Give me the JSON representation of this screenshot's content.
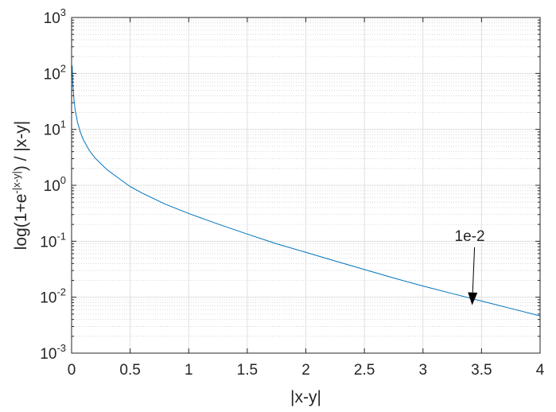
{
  "chart_data": {
    "type": "line",
    "title": "",
    "xlabel": "|x-y|",
    "ylabel": {
      "prefix": "log(1+e",
      "superscript": "-|x-y|",
      "suffix": ") / |x-y|"
    },
    "xlim": [
      0,
      4
    ],
    "ylim": [
      0.001,
      1000
    ],
    "yscale": "log",
    "grid": "on (major and minor, dotted)",
    "x_ticks": [
      "0",
      "0.5",
      "1",
      "1.5",
      "2",
      "2.5",
      "3",
      "3.5",
      "4"
    ],
    "y_ticks": [
      {
        "base": "10",
        "exp": "-3"
      },
      {
        "base": "10",
        "exp": "-2"
      },
      {
        "base": "10",
        "exp": "-1"
      },
      {
        "base": "10",
        "exp": "0"
      },
      {
        "base": "10",
        "exp": "1"
      },
      {
        "base": "10",
        "exp": "2"
      },
      {
        "base": "10",
        "exp": "3"
      }
    ],
    "series": [
      {
        "color": "#0072BD",
        "x": [
          0.005,
          0.01,
          0.02,
          0.03,
          0.05,
          0.075,
          0.1,
          0.15,
          0.2,
          0.3,
          0.4,
          0.5,
          0.6,
          0.8,
          1.0,
          1.25,
          1.5,
          1.75,
          2.0,
          2.25,
          2.5,
          2.75,
          3.0,
          3.25,
          3.5,
          3.75,
          4.0
        ],
        "y": [
          138.3,
          68.97,
          34.31,
          22.76,
          13.51,
          8.878,
          6.556,
          4.235,
          3.077,
          1.922,
          1.348,
          0.9482,
          0.7317,
          0.4603,
          0.3133,
          0.2031,
          0.1343,
          0.09005,
          0.06348,
          0.04446,
          0.03127,
          0.02207,
          0.01582,
          0.01163,
          0.008545,
          0.006294,
          0.004635
        ]
      }
    ],
    "annotation": {
      "text": "1e-2",
      "text_x": 3.25,
      "text_y": 0.095,
      "arrow_to_x": 3.42,
      "arrow_to_y": 0.0072
    }
  }
}
